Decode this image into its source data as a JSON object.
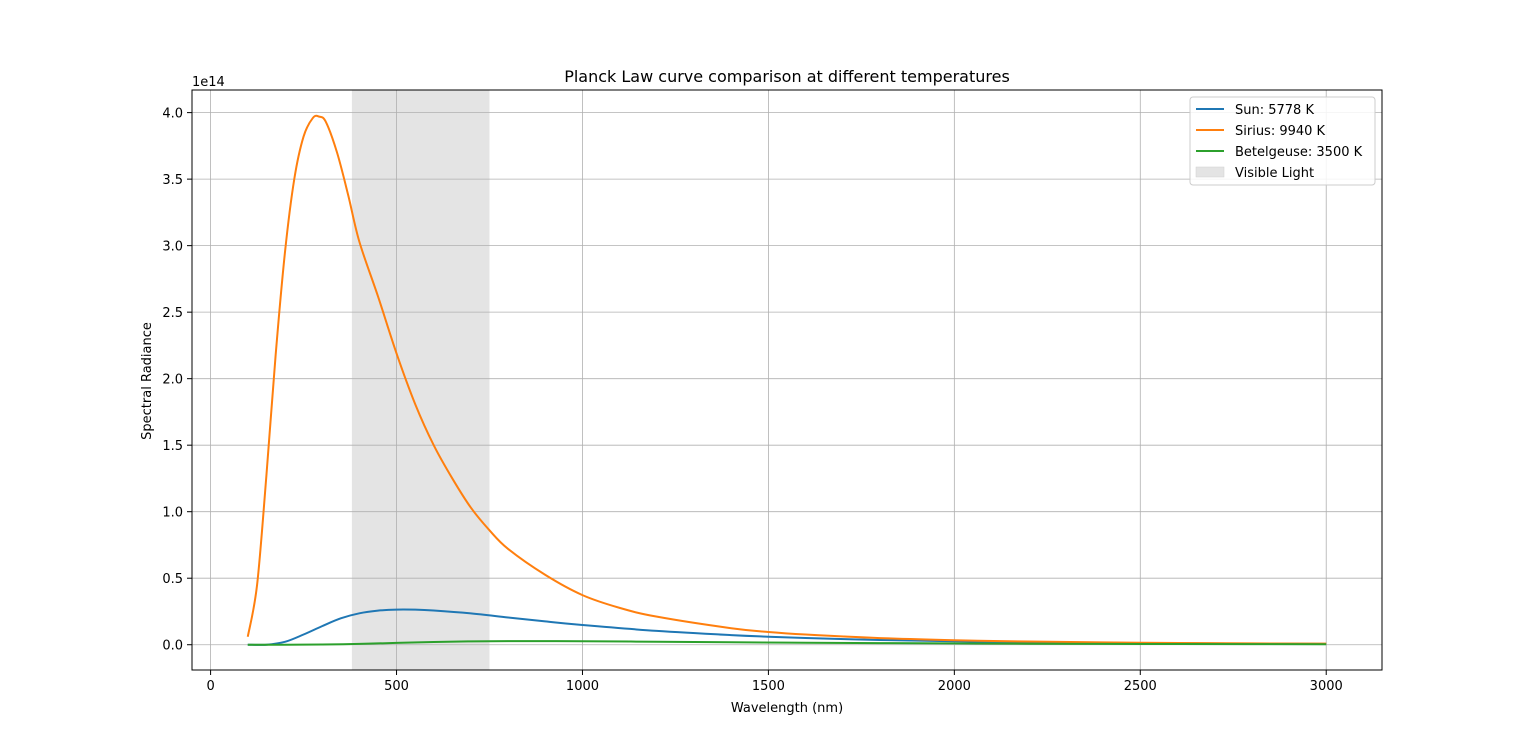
{
  "chart_data": {
    "type": "line",
    "title": "Planck Law curve comparison at different temperatures",
    "xlabel": "Wavelength (nm)",
    "ylabel": "Spectral Radiance",
    "y_scale_label": "1e14",
    "xlim": [
      -50,
      3150
    ],
    "ylim": [
      -0.19,
      4.17
    ],
    "y_multiplier": 100000000000000.0,
    "xticks": [
      0,
      500,
      1000,
      1500,
      2000,
      2500,
      3000
    ],
    "xtick_labels": [
      "0",
      "500",
      "1000",
      "1500",
      "2000",
      "2500",
      "3000"
    ],
    "yticks": [
      0.0,
      0.5,
      1.0,
      1.5,
      2.0,
      2.5,
      3.0,
      3.5,
      4.0
    ],
    "ytick_labels": [
      "0.0",
      "0.5",
      "1.0",
      "1.5",
      "2.0",
      "2.5",
      "3.0",
      "3.5",
      "4.0"
    ],
    "grid": true,
    "legend_position": "top-right",
    "x_range": [
      100,
      3000
    ],
    "series": [
      {
        "name": "Sun: 5778 K",
        "color": "#1f77b4",
        "temperature_K": 5778,
        "x": [
          100,
          150,
          200,
          250,
          300,
          350,
          400,
          450,
          500,
          550,
          600,
          700,
          800,
          900,
          1000,
          1200,
          1400,
          1500,
          1600,
          1800,
          2000,
          2200,
          2500,
          2800,
          3000
        ],
        "y": [
          0.0,
          0.0002,
          0.0217,
          0.0768,
          0.1398,
          0.1982,
          0.2361,
          0.2562,
          0.2643,
          0.2637,
          0.2572,
          0.2353,
          0.205,
          0.1751,
          0.1479,
          0.1038,
          0.0722,
          0.0603,
          0.0505,
          0.0359,
          0.0259,
          0.0191,
          0.0124,
          0.0082,
          0.0066
        ]
      },
      {
        "name": "Sirius: 9940 K",
        "color": "#ff7f0e",
        "temperature_K": 9940,
        "x": [
          100,
          125,
          150,
          175,
          200,
          225,
          250,
          275,
          292,
          310,
          340,
          370,
          400,
          450,
          500,
          550,
          600,
          650,
          700,
          750,
          800,
          900,
          1000,
          1100,
          1200,
          1400,
          1500,
          1600,
          1800,
          2000,
          2200,
          2500,
          2800,
          3000
        ],
        "y": [
          0.06,
          0.45,
          1.27,
          2.18,
          2.95,
          3.5,
          3.82,
          3.96,
          3.97,
          3.93,
          3.7,
          3.38,
          3.03,
          2.62,
          2.19,
          1.81,
          1.5,
          1.25,
          1.03,
          0.86,
          0.72,
          0.525,
          0.373,
          0.277,
          0.211,
          0.124,
          0.096,
          0.077,
          0.05,
          0.034,
          0.024,
          0.015,
          0.01,
          0.008
        ]
      },
      {
        "name": "Betelgeuse: 3500 K",
        "color": "#2ca02c",
        "temperature_K": 3500,
        "x": [
          100,
          200,
          300,
          400,
          500,
          600,
          700,
          800,
          900,
          1000,
          1200,
          1400,
          1600,
          1800,
          2000,
          2200,
          2500,
          2800,
          3000
        ],
        "y": [
          0.0,
          0.0,
          0.0014,
          0.0061,
          0.0138,
          0.0208,
          0.0252,
          0.0271,
          0.0272,
          0.0261,
          0.0226,
          0.0186,
          0.0151,
          0.0121,
          0.0097,
          0.0078,
          0.0058,
          0.0044,
          0.0037
        ]
      }
    ],
    "shaded_region": {
      "name": "Visible Light",
      "x_start": 380,
      "x_end": 750,
      "color": "#e4e4e4"
    }
  }
}
